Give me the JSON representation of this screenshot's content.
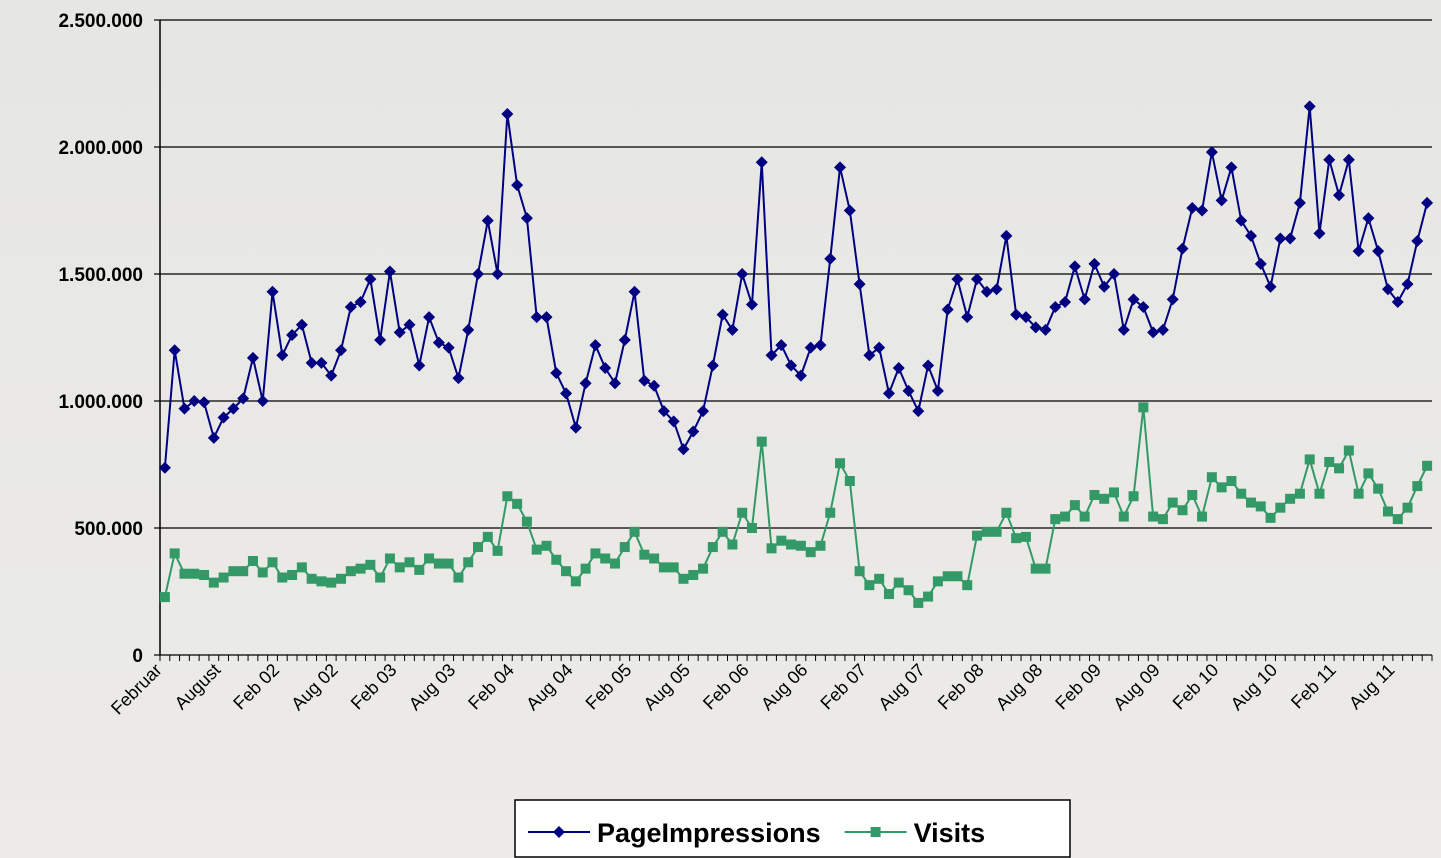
{
  "chart_data": {
    "type": "line",
    "categories": [
      "Februar",
      null,
      null,
      null,
      null,
      null,
      "August",
      null,
      null,
      null,
      null,
      null,
      "Feb 02",
      null,
      null,
      null,
      null,
      null,
      "Aug 02",
      null,
      null,
      null,
      null,
      null,
      "Feb 03",
      null,
      null,
      null,
      null,
      null,
      "Aug 03",
      null,
      null,
      null,
      null,
      null,
      "Feb 04",
      null,
      null,
      null,
      null,
      null,
      "Aug 04",
      null,
      null,
      null,
      null,
      null,
      "Feb 05",
      null,
      null,
      null,
      null,
      null,
      "Aug 05",
      null,
      null,
      null,
      null,
      null,
      "Feb 06",
      null,
      null,
      null,
      null,
      null,
      "Aug 06",
      null,
      null,
      null,
      null,
      null,
      "Feb 07",
      null,
      null,
      null,
      null,
      null,
      "Aug 07",
      null,
      null,
      null,
      null,
      null,
      "Feb 08",
      null,
      null,
      null,
      null,
      null,
      "Aug 08",
      null,
      null,
      null,
      null,
      null,
      "Feb 09",
      null,
      null,
      null,
      null,
      null,
      "Aug 09",
      null,
      null,
      null,
      null,
      null,
      "Feb 10",
      null,
      null,
      null,
      null,
      null,
      "Aug 10",
      null,
      null,
      null,
      null,
      null,
      "Feb 11",
      null,
      null,
      null,
      null,
      null,
      "Aug 11",
      null,
      null,
      null
    ],
    "series": [
      {
        "name": "PageImpressions",
        "color": "#000080",
        "marker": "diamond",
        "values": [
          737000,
          1200000,
          970000,
          1000000,
          995000,
          855000,
          935000,
          970000,
          1010000,
          1170000,
          1000000,
          1430000,
          1180000,
          1260000,
          1300000,
          1150000,
          1150000,
          1100000,
          1200000,
          1370000,
          1390000,
          1480000,
          1240000,
          1510000,
          1270000,
          1300000,
          1140000,
          1330000,
          1230000,
          1210000,
          1090000,
          1280000,
          1500000,
          1710000,
          1500000,
          2130000,
          1850000,
          1720000,
          1330000,
          1330000,
          1110000,
          1030000,
          895000,
          1070000,
          1220000,
          1130000,
          1070000,
          1240000,
          1430000,
          1080000,
          1060000,
          960000,
          920000,
          810000,
          880000,
          960000,
          1140000,
          1340000,
          1280000,
          1500000,
          1380000,
          1940000,
          1180000,
          1220000,
          1140000,
          1100000,
          1210000,
          1220000,
          1560000,
          1920000,
          1750000,
          1460000,
          1180000,
          1210000,
          1030000,
          1130000,
          1040000,
          960000,
          1140000,
          1040000,
          1360000,
          1480000,
          1330000,
          1480000,
          1430000,
          1440000,
          1650000,
          1340000,
          1330000,
          1290000,
          1280000,
          1370000,
          1390000,
          1530000,
          1400000,
          1540000,
          1450000,
          1500000,
          1280000,
          1400000,
          1370000,
          1270000,
          1280000,
          1400000,
          1600000,
          1760000,
          1750000,
          1980000,
          1790000,
          1920000,
          1710000,
          1650000,
          1540000,
          1450000,
          1640000,
          1640000,
          1780000,
          2160000,
          1660000,
          1950000,
          1810000,
          1950000,
          1590000,
          1720000,
          1590000,
          1440000,
          1390000,
          1460000,
          1630000,
          1780000
        ]
      },
      {
        "name": "Visits",
        "color": "#339966",
        "marker": "square",
        "values": [
          228000,
          400000,
          320000,
          320000,
          315000,
          285000,
          305000,
          330000,
          330000,
          370000,
          325000,
          365000,
          305000,
          315000,
          345000,
          300000,
          290000,
          285000,
          300000,
          330000,
          340000,
          355000,
          305000,
          380000,
          345000,
          365000,
          335000,
          380000,
          360000,
          360000,
          305000,
          365000,
          425000,
          465000,
          410000,
          625000,
          595000,
          525000,
          415000,
          430000,
          375000,
          330000,
          290000,
          340000,
          400000,
          380000,
          360000,
          425000,
          485000,
          395000,
          380000,
          345000,
          345000,
          300000,
          315000,
          340000,
          425000,
          485000,
          435000,
          560000,
          500000,
          840000,
          420000,
          450000,
          435000,
          430000,
          405000,
          430000,
          560000,
          755000,
          685000,
          330000,
          275000,
          300000,
          240000,
          285000,
          255000,
          205000,
          230000,
          290000,
          310000,
          310000,
          275000,
          470000,
          485000,
          485000,
          560000,
          460000,
          465000,
          340000,
          340000,
          535000,
          545000,
          590000,
          545000,
          630000,
          615000,
          640000,
          545000,
          625000,
          975000,
          545000,
          535000,
          600000,
          570000,
          630000,
          545000,
          700000,
          660000,
          685000,
          635000,
          600000,
          585000,
          540000,
          580000,
          615000,
          635000,
          770000,
          635000,
          760000,
          735000,
          805000,
          635000,
          715000,
          655000,
          565000,
          535000,
          580000,
          665000,
          745000
        ]
      }
    ],
    "ylim": [
      0,
      2500000
    ],
    "yticks": [
      0,
      {
        "value": 500000,
        "label": "500.000"
      },
      {
        "value": 1000000,
        "label": "1.000.000"
      },
      {
        "value": 1500000,
        "label": "1.500.000"
      },
      {
        "value": 2000000,
        "label": "2.000.000"
      },
      {
        "value": 2500000,
        "label": "2.500.000"
      }
    ],
    "grid": true,
    "legend": "bottom"
  }
}
